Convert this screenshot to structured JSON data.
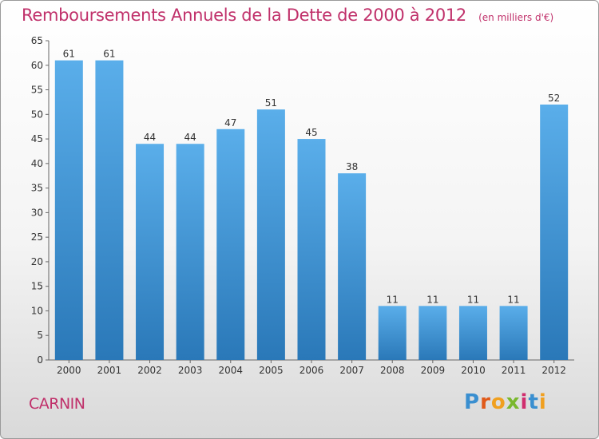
{
  "chart_data": {
    "type": "bar",
    "title": "Remboursements Annuels de la Dette de 2000 à 2012",
    "unit": "(en milliers d'€)",
    "categories": [
      "2000",
      "2001",
      "2002",
      "2003",
      "2004",
      "2005",
      "2006",
      "2007",
      "2008",
      "2009",
      "2010",
      "2011",
      "2012"
    ],
    "values": [
      61,
      61,
      44,
      44,
      47,
      51,
      45,
      38,
      11,
      11,
      11,
      11,
      52
    ],
    "ylim": [
      0,
      65
    ],
    "yticks": [
      0,
      5,
      10,
      15,
      20,
      25,
      30,
      35,
      40,
      45,
      50,
      55,
      60,
      65
    ],
    "grid": false,
    "colors": {
      "bar_top": "#5aaeea",
      "bar_bottom": "#2a78b8",
      "title": "#c0306a"
    }
  },
  "commune": "CARNIN",
  "logo": [
    "P",
    "r",
    "o",
    "x",
    "i",
    "t",
    "i"
  ]
}
